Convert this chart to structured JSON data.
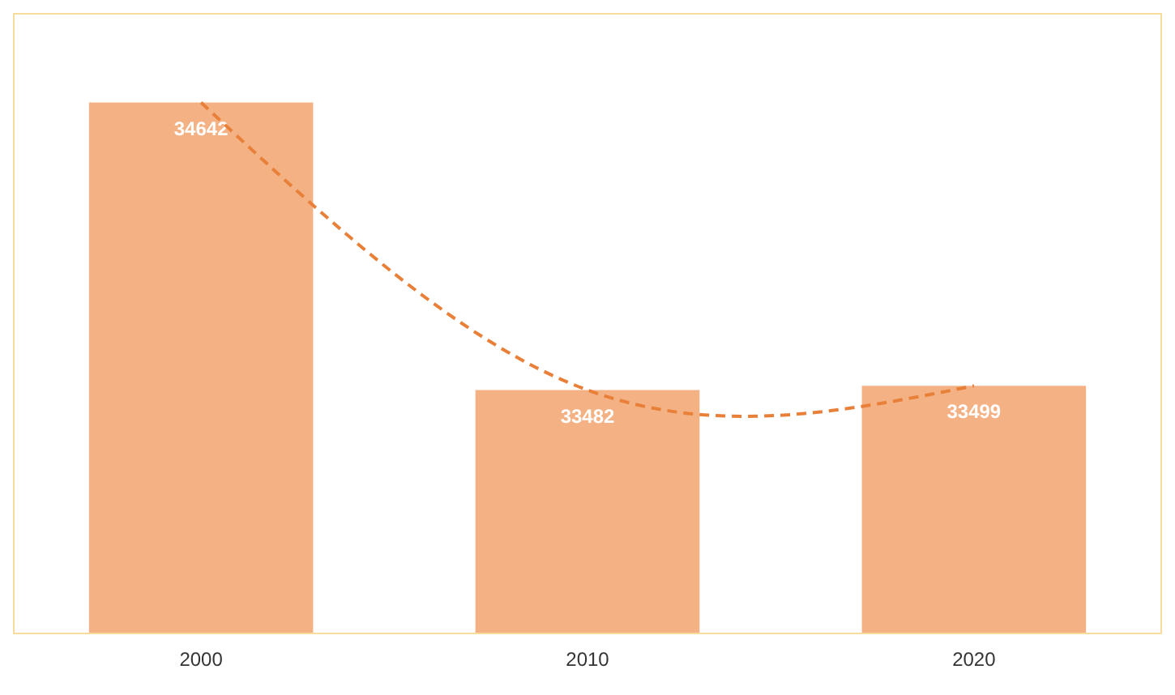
{
  "chart_data": {
    "type": "bar",
    "categories": [
      "2000",
      "2010",
      "2020"
    ],
    "series": [
      {
        "color": "#f4b183",
        "values": [
          34642,
          33482,
          33499
        ],
        "value_labels": [
          "34642",
          "33482",
          "33499"
        ]
      },
      {
        "type": "line",
        "color": "#e8803a",
        "line_style": "dashed",
        "marker": "none",
        "values": [
          34642,
          33482,
          33499
        ]
      }
    ],
    "ylim": [
      32500,
      35000
    ],
    "tick_labels": "x"
  }
}
